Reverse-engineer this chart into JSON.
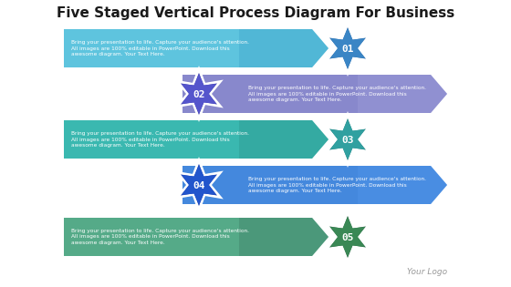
{
  "title": "Five Staged Vertical Process Diagram For Business",
  "title_fontsize": 11,
  "bg_color": "#ffffff",
  "logo_text": "Your Logo",
  "text_body": "Bring your presentation to life. Capture your audience's attention.\nAll images are 100% editable in PowerPoint. Download this\nawesome diagram. Your Text Here.",
  "steps": [
    {
      "number": "01",
      "side": "left",
      "bar_color": "#5ec4de",
      "bar_color2": "#3a9fc8",
      "star_color": "#2a6aaa",
      "star_color2": "#3a85c5"
    },
    {
      "number": "02",
      "side": "right",
      "bar_color": "#8888cc",
      "bar_color2": "#a0a0dd",
      "star_color": "#3a3aaa",
      "star_color2": "#5555cc"
    },
    {
      "number": "03",
      "side": "left",
      "bar_color": "#3ab8b0",
      "bar_color2": "#2a9088",
      "star_color": "#258080",
      "star_color2": "#30a0a0"
    },
    {
      "number": "04",
      "side": "right",
      "bar_color": "#4488dd",
      "bar_color2": "#5599ee",
      "star_color": "#1a3aaa",
      "star_color2": "#2255cc"
    },
    {
      "number": "05",
      "side": "left",
      "bar_color": "#55aa88",
      "bar_color2": "#3a7760",
      "star_color": "#2a6644",
      "star_color2": "#3a8855"
    }
  ],
  "fig_width": 5.6,
  "fig_height": 3.15,
  "dpi": 100
}
